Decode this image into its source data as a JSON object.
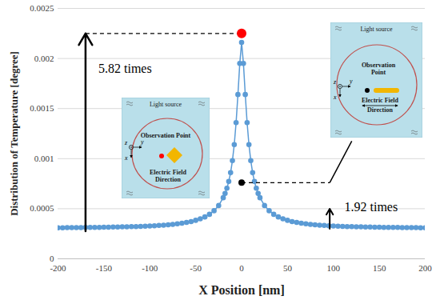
{
  "chart_data": {
    "type": "line",
    "xlabel": "X Position [nm]",
    "ylabel": "Distribution of Temperature [degree]",
    "x": [
      -200,
      -195,
      -190,
      -185,
      -180,
      -175,
      -170,
      -165,
      -160,
      -155,
      -150,
      -145,
      -140,
      -135,
      -130,
      -125,
      -120,
      -115,
      -110,
      -105,
      -100,
      -95,
      -90,
      -85,
      -80,
      -75,
      -70,
      -65,
      -60,
      -55,
      -50,
      -45,
      -40,
      -35,
      -30,
      -25,
      -20,
      -18,
      -16,
      -14,
      -12,
      -10,
      -8,
      -6,
      -4,
      -2,
      0,
      2,
      4,
      6,
      8,
      10,
      12,
      14,
      16,
      18,
      20,
      25,
      30,
      35,
      40,
      45,
      50,
      55,
      60,
      65,
      70,
      75,
      80,
      85,
      90,
      95,
      100,
      105,
      110,
      115,
      120,
      125,
      130,
      135,
      140,
      145,
      150,
      155,
      160,
      165,
      170,
      175,
      180,
      185,
      190,
      195,
      200
    ],
    "values": [
      0.00031,
      0.00031,
      0.000311,
      0.000311,
      0.000312,
      0.000312,
      0.000313,
      0.000313,
      0.000314,
      0.000314,
      0.000315,
      0.000316,
      0.000317,
      0.000318,
      0.000319,
      0.00032,
      0.000321,
      0.000322,
      0.000324,
      0.000326,
      0.000328,
      0.00033,
      0.000333,
      0.000336,
      0.00034,
      0.000344,
      0.000349,
      0.000355,
      0.000363,
      0.000372,
      0.000384,
      0.000399,
      0.000418,
      0.000444,
      0.00048,
      0.000532,
      0.00061,
      0.000652,
      0.000705,
      0.000772,
      0.00086,
      0.00098,
      0.00114,
      0.00136,
      0.00164,
      0.00195,
      0.00216,
      0.00195,
      0.00164,
      0.00136,
      0.00114,
      0.00098,
      0.00086,
      0.000772,
      0.000705,
      0.000652,
      0.00061,
      0.000532,
      0.00048,
      0.000444,
      0.000418,
      0.000399,
      0.000384,
      0.000372,
      0.000363,
      0.000355,
      0.000349,
      0.000344,
      0.00034,
      0.000336,
      0.000333,
      0.00033,
      0.000328,
      0.000326,
      0.000324,
      0.000322,
      0.000321,
      0.00032,
      0.000319,
      0.000318,
      0.000317,
      0.000316,
      0.000315,
      0.000314,
      0.000314,
      0.000313,
      0.000313,
      0.000312,
      0.000312,
      0.000311,
      0.000311,
      0.00031,
      0.00031
    ],
    "color": "#5b9bd5",
    "marker": "circle",
    "xlim": [
      -200,
      200
    ],
    "xticks": [
      -200,
      -150,
      -100,
      -50,
      0,
      50,
      100,
      150,
      200
    ],
    "ylim": [
      0,
      0.0025
    ],
    "yticks": [
      0,
      0.0005,
      0.001,
      0.0015,
      0.002,
      0.0025
    ],
    "grid": "y",
    "highlights": [
      {
        "label": "5.82 times",
        "x": 0,
        "y": 0.00225,
        "color": "#ff0000"
      },
      {
        "label": "1.92 times",
        "x": 0,
        "y": 0.00076,
        "color": "#000000"
      }
    ],
    "insets": [
      {
        "title": "Light source",
        "observation_label": "Observation Point",
        "field_label": "Electric Field Direction",
        "axis_labels": [
          "z",
          "y",
          "x"
        ],
        "observation_color": "#ff0000",
        "shape": "diamond"
      },
      {
        "title": "Light source",
        "observation_label": "Observation Point",
        "field_label": "Electric Field Direction",
        "axis_labels": [
          "z",
          "y",
          "x"
        ],
        "observation_color": "#000000",
        "shape": "rod"
      }
    ]
  }
}
